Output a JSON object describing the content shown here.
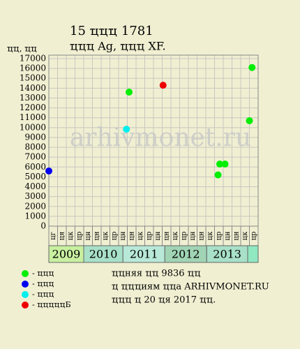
{
  "chart_data": {
    "type": "scatter",
    "title": "15 ҵҵҵ 1781",
    "subtitle": "ҵҵҵ Ag, ҵҵҵ XF.",
    "y_label": "ҵҵ, ҵҵ",
    "watermark": "arhivmonet.ru",
    "xlim": [
      0,
      24
    ],
    "ylim": [
      0,
      17000
    ],
    "yticks": [
      0,
      1000,
      2000,
      3000,
      4000,
      5000,
      6000,
      7000,
      8000,
      9000,
      10000,
      11000,
      12000,
      13000,
      14000,
      15000,
      16000,
      17000
    ],
    "grid": true,
    "months": [
      "цг",
      "ця",
      "цк",
      "цр",
      "цн",
      "цн",
      "цк",
      "цр",
      "цн",
      "цн",
      "цк",
      "цр",
      "цн",
      "цн",
      "цк",
      "цр",
      "цн",
      "цн",
      "цк",
      "цр",
      "цн",
      "цн",
      "цк",
      "цр"
    ],
    "years": [
      {
        "label": "2009",
        "start": 0,
        "end": 4,
        "color": "#c8f0a0"
      },
      {
        "label": "2010",
        "start": 4,
        "end": 8.5,
        "color": "#a8e0c8"
      },
      {
        "label": "2011",
        "start": 8.5,
        "end": 13.3,
        "color": "#b8e8d8"
      },
      {
        "label": "2012",
        "start": 13.3,
        "end": 18.1,
        "color": "#a0d4b4"
      },
      {
        "label": "2013",
        "start": 18.1,
        "end": 22.8,
        "color": "#a8e0c8"
      },
      {
        "label": null,
        "start": 22.8,
        "end": 24,
        "color": "#90e8c0"
      }
    ],
    "series": [
      {
        "name": "- ҵҵҵ",
        "color": "#00ee00",
        "x": [
          9.2,
          19.4,
          19.6,
          20.2,
          23.0,
          23.3
        ],
        "values": [
          13600,
          5200,
          6300,
          6300,
          10700,
          16100
        ]
      },
      {
        "name": "- ҵҵҵ",
        "color": "#0000ee",
        "x": [
          0
        ],
        "values": [
          5600
        ]
      },
      {
        "name": "- ҵҵҵ",
        "color": "#00eeee",
        "x": [
          8.9
        ],
        "values": [
          9836
        ]
      },
      {
        "name": "- ҵҵҵҵҵБ",
        "color": "#ee0000",
        "x": [
          13.1
        ],
        "values": [
          14300
        ]
      }
    ],
    "notes": [
      "ҵҵняя ҵҵ 9836 ҵҵ",
      "ҵ ҵҵҵиям ҵҵа ARHIVMONET.RU",
      "ҵҵҵ ҵ 20 ҵя 2017 ҵҵ."
    ]
  }
}
